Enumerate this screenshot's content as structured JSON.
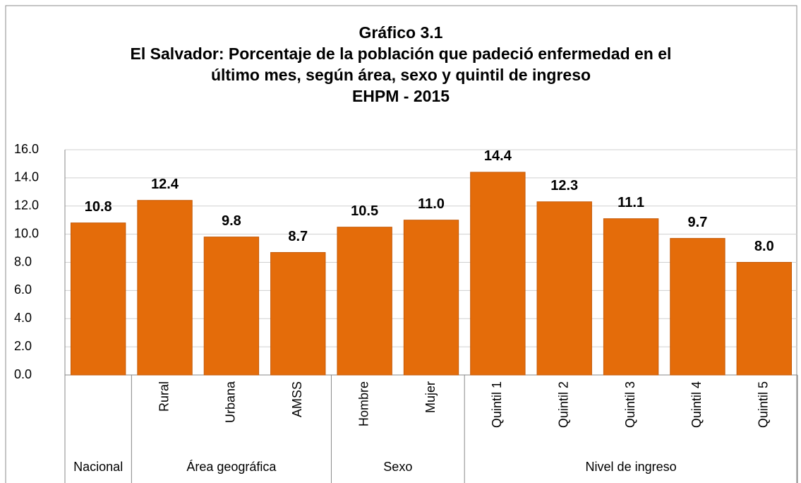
{
  "chart_data": {
    "type": "bar",
    "title": [
      "Gráfico 3.1",
      "El Salvador: Porcentaje de la población que padeció enfermedad en el",
      "último mes, según área, sexo y quintil de ingreso",
      "EHPM - 2015"
    ],
    "groups": [
      {
        "label": "Nacional",
        "categories": [
          null
        ]
      },
      {
        "label": "Área geográfica",
        "categories": [
          "Rural",
          "Urbana",
          "AMSS"
        ]
      },
      {
        "label": "Sexo",
        "categories": [
          "Hombre",
          "Mujer"
        ]
      },
      {
        "label": "Nivel de ingreso",
        "categories": [
          "Quintil 1",
          "Quintil 2",
          "Quintil 3",
          "Quintil 4",
          "Quintil 5"
        ]
      }
    ],
    "values": [
      10.8,
      12.4,
      9.8,
      8.7,
      10.5,
      11.0,
      14.4,
      12.3,
      11.1,
      9.7,
      8.0
    ],
    "value_labels": [
      "10.8",
      "12.4",
      "9.8",
      "8.7",
      "10.5",
      "11.0",
      "14.4",
      "12.3",
      "11.1",
      "9.7",
      "8.0"
    ],
    "color": "#e46c0a",
    "ylim": [
      0,
      16
    ],
    "yticks": [
      {
        "value": 0,
        "label": "0.0"
      },
      {
        "value": 2,
        "label": "2.0"
      },
      {
        "value": 4,
        "label": "4.0"
      },
      {
        "value": 6,
        "label": "6.0"
      },
      {
        "value": 8,
        "label": "8.0"
      },
      {
        "value": 10,
        "label": "10.0"
      },
      {
        "value": 12,
        "label": "12.0"
      },
      {
        "value": 14,
        "label": "14.0"
      },
      {
        "value": 16,
        "label": "16.0"
      }
    ],
    "grid": true
  }
}
